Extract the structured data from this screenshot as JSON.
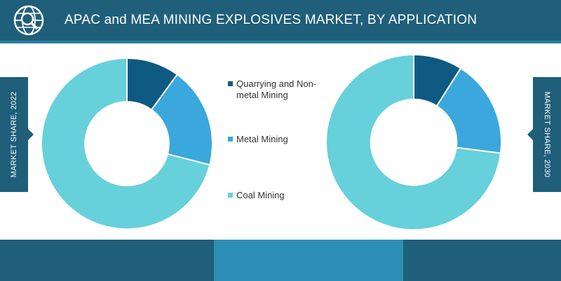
{
  "header": {
    "title": "APAC and MEA MINING EXPLOSIVES MARKET, BY APPLICATION",
    "logo_icon": "globe-search-icon"
  },
  "side_labels": {
    "left": "MARKET SHARE, 2022",
    "right": "MARKET SHARE, 2030"
  },
  "colors": {
    "header_bg": "#1f5f7a",
    "quarrying": "#0f5a82",
    "metal": "#3aa8dc",
    "coal": "#66d0db"
  },
  "chart_data": [
    {
      "type": "pie",
      "donut": true,
      "title": "",
      "categories": [
        "Quarrying and Non-metal Mining",
        "Metal Mining",
        "Coal Mining"
      ],
      "values": [
        10,
        19,
        71
      ]
    },
    {
      "type": "pie",
      "donut": true,
      "title": "",
      "categories": [
        "Quarrying and Non-metal Mining",
        "Metal Mining",
        "Coal Mining"
      ],
      "values": [
        9,
        18,
        73
      ]
    }
  ],
  "legend": [
    {
      "label": "Quarrying and Non-metal Mining",
      "color": "#0f5a82"
    },
    {
      "label": "Metal Mining",
      "color": "#3aa8dc"
    },
    {
      "label": "Coal Mining",
      "color": "#66d0db"
    }
  ]
}
